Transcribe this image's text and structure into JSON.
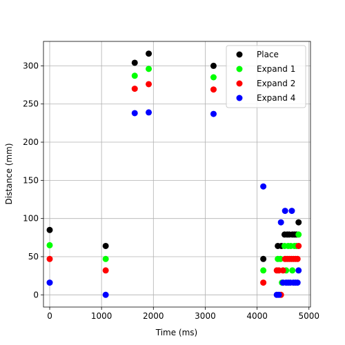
{
  "chart_data": {
    "type": "scatter",
    "title": "",
    "xlabel": "Time (ms)",
    "ylabel": "Distance (mm)",
    "xlim": [
      -120,
      5030
    ],
    "ylim": [
      -16,
      332
    ],
    "xticks": [
      0,
      1000,
      2000,
      3000,
      4000,
      5000
    ],
    "yticks": [
      0,
      50,
      100,
      150,
      200,
      250,
      300
    ],
    "grid": true,
    "legend_position": "top-right",
    "series": [
      {
        "name": "Place",
        "color": "#000000",
        "points": [
          [
            0,
            85
          ],
          [
            1080,
            64
          ],
          [
            1640,
            304
          ],
          [
            1910,
            316
          ],
          [
            3160,
            300
          ],
          [
            4120,
            47
          ],
          [
            4400,
            64
          ],
          [
            4470,
            64
          ],
          [
            4530,
            79
          ],
          [
            4580,
            79
          ],
          [
            4620,
            79
          ],
          [
            4680,
            79
          ],
          [
            4720,
            79
          ],
          [
            4760,
            79
          ],
          [
            4800,
            95
          ]
        ]
      },
      {
        "name": "Expand 1",
        "color": "#00ff00",
        "points": [
          [
            0,
            65
          ],
          [
            1080,
            47
          ],
          [
            1640,
            287
          ],
          [
            1910,
            296
          ],
          [
            3160,
            285
          ],
          [
            4120,
            32
          ],
          [
            4400,
            47
          ],
          [
            4450,
            47
          ],
          [
            4480,
            16
          ],
          [
            4530,
            64
          ],
          [
            4560,
            32
          ],
          [
            4600,
            64
          ],
          [
            4650,
            64
          ],
          [
            4680,
            32
          ],
          [
            4720,
            64
          ],
          [
            4760,
            64
          ],
          [
            4800,
            79
          ]
        ]
      },
      {
        "name": "Expand 2",
        "color": "#ff0000",
        "points": [
          [
            0,
            47
          ],
          [
            1080,
            32
          ],
          [
            1640,
            270
          ],
          [
            1910,
            276
          ],
          [
            3160,
            269
          ],
          [
            4120,
            16
          ],
          [
            4380,
            32
          ],
          [
            4420,
            32
          ],
          [
            4460,
            0
          ],
          [
            4500,
            32
          ],
          [
            4540,
            47
          ],
          [
            4580,
            47
          ],
          [
            4620,
            47
          ],
          [
            4660,
            47
          ],
          [
            4700,
            47
          ],
          [
            4740,
            47
          ],
          [
            4780,
            47
          ],
          [
            4800,
            64
          ]
        ]
      },
      {
        "name": "Expand 4",
        "color": "#0000ff",
        "points": [
          [
            0,
            16
          ],
          [
            1080,
            0
          ],
          [
            1640,
            238
          ],
          [
            1910,
            239
          ],
          [
            3160,
            237
          ],
          [
            4120,
            142
          ],
          [
            4380,
            0
          ],
          [
            4420,
            0
          ],
          [
            4460,
            95
          ],
          [
            4500,
            16
          ],
          [
            4540,
            110
          ],
          [
            4560,
            16
          ],
          [
            4600,
            16
          ],
          [
            4640,
            16
          ],
          [
            4670,
            110
          ],
          [
            4700,
            16
          ],
          [
            4740,
            16
          ],
          [
            4780,
            16
          ],
          [
            4800,
            32
          ]
        ]
      }
    ]
  }
}
